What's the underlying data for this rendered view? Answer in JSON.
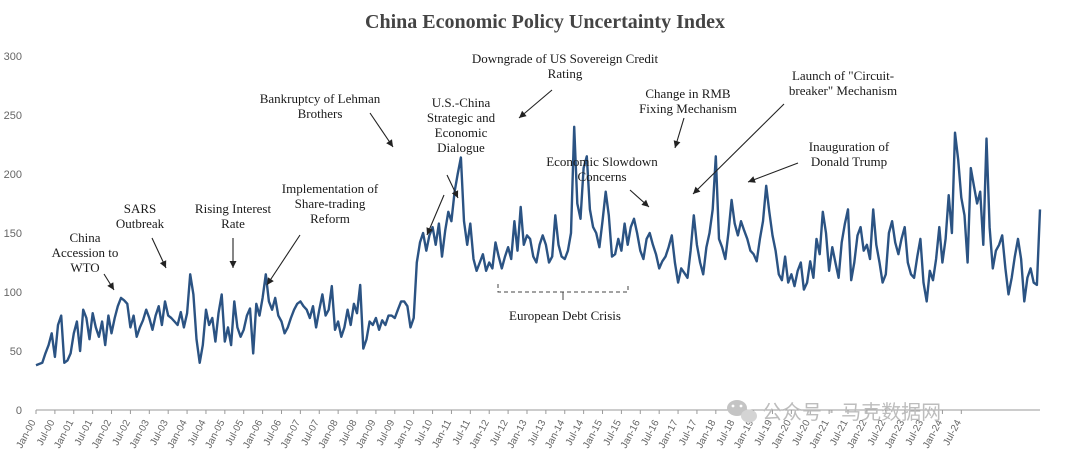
{
  "chart_data": {
    "type": "line",
    "title": "China Economic Policy Uncertainty Index",
    "xlabel": "",
    "ylabel": "",
    "ylim": [
      0,
      300
    ],
    "yticks": [
      0,
      50,
      100,
      150,
      200,
      250,
      300
    ],
    "grid": false,
    "line_color": "#2b5383",
    "x_tick_labels": [
      "Jan-00",
      "Jul-00",
      "Jan-01",
      "Jul-01",
      "Jan-02",
      "Jul-02",
      "Jan-03",
      "Jul-03",
      "Jan-04",
      "Jul-04",
      "Jan-05",
      "Jul-05",
      "Jan-06",
      "Jul-06",
      "Jan-07",
      "Jul-07",
      "Jan-08",
      "Jul-08",
      "Jan-09",
      "Jul-09",
      "Jan-10",
      "Jul-10",
      "Jan-11",
      "Jul-11",
      "Jan-12",
      "Jul-12",
      "Jan-13",
      "Jul-13",
      "Jan-14",
      "Jul-14",
      "Jan-15",
      "Jul-15",
      "Jan-16",
      "Jul-16",
      "Jan-17",
      "Jul-17",
      "Jan-18",
      "Jul-18",
      "Jan-19",
      "Jul-19",
      "Jan-20",
      "Jul-20",
      "Jan-21",
      "Jul-21",
      "Jan-22",
      "Jul-22",
      "Jan-23",
      "Jul-23",
      "Jan-24",
      "Jul-24"
    ],
    "series": [
      {
        "name": "",
        "values": [
          38,
          39,
          40,
          48,
          55,
          65,
          45,
          72,
          80,
          40,
          42,
          48,
          65,
          75,
          50,
          85,
          78,
          60,
          82,
          70,
          62,
          75,
          55,
          80,
          65,
          78,
          88,
          95,
          93,
          90,
          70,
          80,
          62,
          70,
          76,
          85,
          78,
          68,
          80,
          88,
          72,
          92,
          80,
          78,
          75,
          72,
          83,
          70,
          82,
          115,
          98,
          60,
          40,
          55,
          85,
          72,
          78,
          58,
          82,
          98,
          58,
          70,
          55,
          92,
          70,
          62,
          68,
          80,
          86,
          48,
          90,
          80,
          95,
          115,
          92,
          85,
          95,
          80,
          75,
          65,
          70,
          78,
          85,
          90,
          92,
          88,
          85,
          78,
          88,
          70,
          85,
          98,
          80,
          85,
          105,
          68,
          75,
          62,
          70,
          85,
          72,
          90,
          82,
          106,
          52,
          60,
          75,
          72,
          78,
          68,
          76,
          72,
          80,
          80,
          78,
          85,
          92,
          92,
          88,
          70,
          78,
          125,
          142,
          150,
          135,
          148,
          155,
          140,
          158,
          130,
          152,
          168,
          160,
          185,
          200,
          214,
          160,
          140,
          158,
          128,
          118,
          125,
          132,
          118,
          125,
          120,
          142,
          130,
          120,
          130,
          138,
          128,
          160,
          135,
          172,
          140,
          148,
          145,
          130,
          125,
          140,
          148,
          140,
          125,
          130,
          165,
          140,
          130,
          128,
          135,
          150,
          240,
          175,
          162,
          205,
          215,
          170,
          155,
          150,
          138,
          160,
          185,
          165,
          130,
          132,
          145,
          135,
          158,
          140,
          155,
          162,
          150,
          135,
          128,
          145,
          150,
          140,
          132,
          120,
          126,
          130,
          138,
          148,
          125,
          108,
          120,
          116,
          112,
          135,
          165,
          140,
          125,
          115,
          138,
          150,
          170,
          215,
          145,
          138,
          128,
          150,
          178,
          158,
          148,
          160,
          152,
          145,
          135,
          132,
          126,
          145,
          160,
          190,
          168,
          148,
          135,
          115,
          110,
          130,
          108,
          115,
          105,
          118,
          125,
          102,
          108,
          126,
          112,
          145,
          132,
          168,
          150,
          118,
          138,
          125,
          112,
          142,
          158,
          170,
          110,
          125,
          148,
          155,
          135,
          140,
          128,
          170,
          140,
          125,
          108,
          115,
          150,
          160,
          142,
          132,
          145,
          155,
          125,
          115,
          112,
          130,
          145,
          108,
          92,
          118,
          110,
          128,
          155,
          125,
          145,
          182,
          150,
          235,
          212,
          180,
          165,
          125,
          205,
          190,
          175,
          185,
          140,
          230,
          155,
          120,
          135,
          140,
          148,
          120,
          98,
          112,
          130,
          145,
          128,
          92,
          112,
          120,
          108,
          106,
          170
        ]
      }
    ],
    "annotations": [
      {
        "lines": [
          "China",
          "Accession to",
          "WTO"
        ]
      },
      {
        "lines": [
          "SARS",
          "Outbreak"
        ]
      },
      {
        "lines": [
          "Rising Interest",
          "Rate"
        ]
      },
      {
        "lines": [
          "Implementation of",
          "Share-trading",
          "Reform"
        ]
      },
      {
        "lines": [
          "Bankruptcy of Lehman",
          "Brothers"
        ]
      },
      {
        "lines": [
          "U.S.-China",
          "Strategic and",
          "Economic",
          "Dialogue"
        ]
      },
      {
        "lines": [
          "Downgrade of US Sovereign Credit",
          "Rating"
        ]
      },
      {
        "lines": [
          "Economic Slowdown",
          "Concerns"
        ]
      },
      {
        "lines": [
          "Change in RMB",
          "Fixing Mechanism"
        ]
      },
      {
        "lines": [
          "Launch of \"Circuit-",
          "breaker\" Mechanism"
        ]
      },
      {
        "lines": [
          "Inauguration of",
          "Donald Trump"
        ]
      },
      {
        "lines": [
          "European Debt Crisis"
        ]
      }
    ],
    "watermark": "公众号 · 马克数据网"
  }
}
